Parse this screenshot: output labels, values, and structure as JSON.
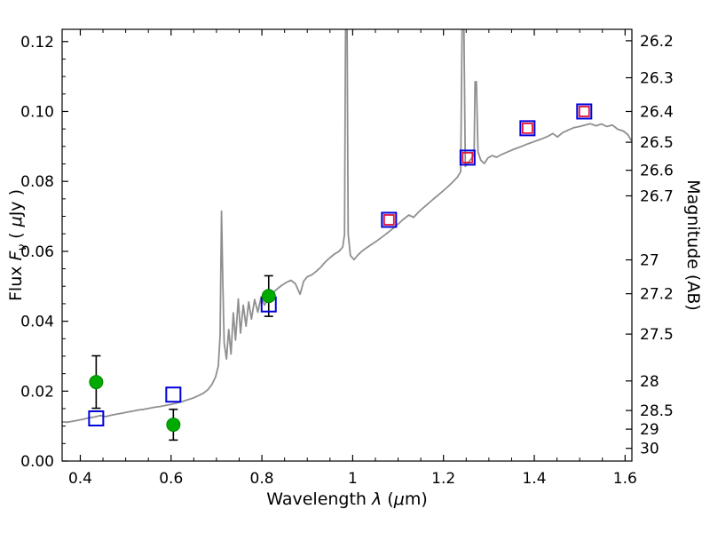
{
  "chart_data": {
    "type": "line",
    "title": "",
    "xlabel": "Wavelength λ (μm)",
    "ylabel": "Flux Fν ( μJy )",
    "ylabel_right": "Magnitude (AB)",
    "xlim": [
      0.36,
      1.615
    ],
    "ylim": [
      0.0,
      0.1235
    ],
    "x_ticks": [
      0.4,
      0.6,
      0.8,
      1.0,
      1.2,
      1.4,
      1.6
    ],
    "x_tick_labels": [
      "0.4",
      "0.6",
      "0.8",
      "1",
      "1.2",
      "1.4",
      "1.6"
    ],
    "x_minor_step": 0.05,
    "y_ticks": [
      0.0,
      0.02,
      0.04,
      0.06,
      0.08,
      0.1,
      0.12
    ],
    "y_tick_labels": [
      "0.00",
      "0.02",
      "0.04",
      "0.06",
      "0.08",
      "0.10",
      "0.12"
    ],
    "y_minor_step": 0.005,
    "right_axis": {
      "label": "Magnitude (AB)",
      "ab_zero_point": 23.9,
      "tick_values": [
        26.2,
        26.3,
        26.4,
        26.5,
        26.6,
        26.7,
        27,
        27.2,
        27.5,
        28,
        28.5,
        29,
        30
      ],
      "tick_labels": [
        "26.2",
        "26.3",
        "26.4",
        "26.5",
        "26.6",
        "26.7",
        "27",
        "27.2",
        "27.5",
        "28",
        "28.5",
        "29",
        "30"
      ]
    },
    "series": [
      {
        "name": "model-spectrum",
        "type": "line",
        "color": "#8f8f8f",
        "linewidth": 1.8,
        "points": [
          [
            0.36,
            0.0112
          ],
          [
            0.372,
            0.0111
          ],
          [
            0.384,
            0.0114
          ],
          [
            0.396,
            0.0117
          ],
          [
            0.408,
            0.012
          ],
          [
            0.42,
            0.0124
          ],
          [
            0.432,
            0.0126
          ],
          [
            0.444,
            0.013
          ],
          [
            0.456,
            0.0127
          ],
          [
            0.468,
            0.0131
          ],
          [
            0.48,
            0.0134
          ],
          [
            0.492,
            0.0137
          ],
          [
            0.504,
            0.014
          ],
          [
            0.516,
            0.0143
          ],
          [
            0.528,
            0.0146
          ],
          [
            0.54,
            0.0148
          ],
          [
            0.552,
            0.0151
          ],
          [
            0.564,
            0.0154
          ],
          [
            0.576,
            0.0156
          ],
          [
            0.588,
            0.0159
          ],
          [
            0.6,
            0.0162
          ],
          [
            0.612,
            0.0166
          ],
          [
            0.624,
            0.017
          ],
          [
            0.636,
            0.0175
          ],
          [
            0.648,
            0.018
          ],
          [
            0.66,
            0.0187
          ],
          [
            0.671,
            0.0194
          ],
          [
            0.681,
            0.0204
          ],
          [
            0.69,
            0.0219
          ],
          [
            0.698,
            0.0241
          ],
          [
            0.704,
            0.0272
          ],
          [
            0.708,
            0.036
          ],
          [
            0.711,
            0.0715
          ],
          [
            0.714,
            0.0505
          ],
          [
            0.717,
            0.0338
          ],
          [
            0.722,
            0.0292
          ],
          [
            0.727,
            0.0376
          ],
          [
            0.732,
            0.0306
          ],
          [
            0.737,
            0.0424
          ],
          [
            0.742,
            0.0346
          ],
          [
            0.748,
            0.0464
          ],
          [
            0.753,
            0.0366
          ],
          [
            0.759,
            0.0446
          ],
          [
            0.765,
            0.0386
          ],
          [
            0.771,
            0.0455
          ],
          [
            0.777,
            0.0406
          ],
          [
            0.784,
            0.0462
          ],
          [
            0.791,
            0.0426
          ],
          [
            0.798,
            0.0468
          ],
          [
            0.806,
            0.0446
          ],
          [
            0.815,
            0.0471
          ],
          [
            0.824,
            0.0481
          ],
          [
            0.834,
            0.0493
          ],
          [
            0.844,
            0.0503
          ],
          [
            0.854,
            0.0511
          ],
          [
            0.864,
            0.0517
          ],
          [
            0.874,
            0.0507
          ],
          [
            0.884,
            0.0477
          ],
          [
            0.892,
            0.0514
          ],
          [
            0.9,
            0.0527
          ],
          [
            0.91,
            0.0533
          ],
          [
            0.92,
            0.0543
          ],
          [
            0.93,
            0.0555
          ],
          [
            0.94,
            0.057
          ],
          [
            0.95,
            0.0582
          ],
          [
            0.96,
            0.0592
          ],
          [
            0.97,
            0.06
          ],
          [
            0.978,
            0.0612
          ],
          [
            0.982,
            0.0648
          ],
          [
            0.9845,
            0.13
          ],
          [
            0.9875,
            0.13
          ],
          [
            0.99,
            0.065
          ],
          [
            0.995,
            0.0588
          ],
          [
            1.003,
            0.0576
          ],
          [
            1.012,
            0.059
          ],
          [
            1.022,
            0.0602
          ],
          [
            1.035,
            0.0614
          ],
          [
            1.05,
            0.0627
          ],
          [
            1.065,
            0.0641
          ],
          [
            1.08,
            0.0656
          ],
          [
            1.095,
            0.0672
          ],
          [
            1.11,
            0.069
          ],
          [
            1.124,
            0.0704
          ],
          [
            1.134,
            0.0697
          ],
          [
            1.149,
            0.0717
          ],
          [
            1.164,
            0.0734
          ],
          [
            1.179,
            0.0751
          ],
          [
            1.194,
            0.0767
          ],
          [
            1.209,
            0.0784
          ],
          [
            1.221,
            0.0799
          ],
          [
            1.231,
            0.0813
          ],
          [
            1.238,
            0.0828
          ],
          [
            1.2415,
            0.13
          ],
          [
            1.2445,
            0.13
          ],
          [
            1.248,
            0.0843
          ],
          [
            1.255,
            0.0854
          ],
          [
            1.262,
            0.0866
          ],
          [
            1.2675,
            0.0878
          ],
          [
            1.2695,
            0.1085
          ],
          [
            1.2725,
            0.1085
          ],
          [
            1.276,
            0.0884
          ],
          [
            1.282,
            0.0861
          ],
          [
            1.29,
            0.0851
          ],
          [
            1.298,
            0.0867
          ],
          [
            1.307,
            0.0874
          ],
          [
            1.317,
            0.0869
          ],
          [
            1.328,
            0.0877
          ],
          [
            1.341,
            0.0884
          ],
          [
            1.355,
            0.0892
          ],
          [
            1.37,
            0.0899
          ],
          [
            1.385,
            0.0907
          ],
          [
            1.4,
            0.0914
          ],
          [
            1.415,
            0.0921
          ],
          [
            1.43,
            0.0929
          ],
          [
            1.441,
            0.0937
          ],
          [
            1.451,
            0.0927
          ],
          [
            1.462,
            0.0939
          ],
          [
            1.475,
            0.0947
          ],
          [
            1.488,
            0.0954
          ],
          [
            1.5,
            0.0957
          ],
          [
            1.512,
            0.0961
          ],
          [
            1.524,
            0.0965
          ],
          [
            1.536,
            0.0959
          ],
          [
            1.548,
            0.0964
          ],
          [
            1.56,
            0.0957
          ],
          [
            1.572,
            0.0961
          ],
          [
            1.584,
            0.0949
          ],
          [
            1.596,
            0.0944
          ],
          [
            1.606,
            0.0934
          ],
          [
            1.614,
            0.0916
          ]
        ]
      },
      {
        "name": "observed-photometry",
        "type": "scatter",
        "marker": "filled-circle",
        "color": "#00aa00",
        "edge_color": "#008800",
        "errorbar_color": "#000000",
        "points": [
          {
            "x": 0.435,
            "y": 0.0226,
            "yerr": 0.0075
          },
          {
            "x": 0.605,
            "y": 0.0104,
            "yerr": 0.0044
          },
          {
            "x": 0.815,
            "y": 0.0472,
            "yerr": 0.0058
          }
        ]
      },
      {
        "name": "model-photometry",
        "type": "scatter",
        "marker": "open-square",
        "color": "#0000dd",
        "points": [
          {
            "x": 0.435,
            "y": 0.0122
          },
          {
            "x": 0.605,
            "y": 0.019
          },
          {
            "x": 0.815,
            "y": 0.0448
          },
          {
            "x": 1.08,
            "y": 0.069
          },
          {
            "x": 1.253,
            "y": 0.0868
          },
          {
            "x": 1.385,
            "y": 0.0952
          },
          {
            "x": 1.51,
            "y": 0.1
          }
        ]
      },
      {
        "name": "ir-photometry",
        "type": "scatter",
        "marker": "open-square-small",
        "color": "#dc143c",
        "points": [
          {
            "x": 1.08,
            "y": 0.069
          },
          {
            "x": 1.253,
            "y": 0.0868
          },
          {
            "x": 1.385,
            "y": 0.0952
          },
          {
            "x": 1.51,
            "y": 0.1
          }
        ]
      }
    ]
  },
  "labels": {
    "xlabel_prefix": "Wavelength  ",
    "xlabel_sym": "λ",
    "xlabel_mid": " (",
    "xlabel_mu": "μ",
    "xlabel_end": "m)",
    "ylabel_prefix": "Flux  ",
    "ylabel_f": "F",
    "ylabel_sub": "ν",
    "ylabel_mid": "  ( ",
    "ylabel_mu": "μ",
    "ylabel_end": "Jy )",
    "ylabel_right": "Magnitude (AB)"
  },
  "colors": {
    "background": "#ffffff",
    "axes": "#000000",
    "spectrum": "#8f8f8f",
    "observed": "#00aa00",
    "model_square": "#0000dd",
    "ir_square": "#dc143c",
    "errorbar": "#000000"
  }
}
